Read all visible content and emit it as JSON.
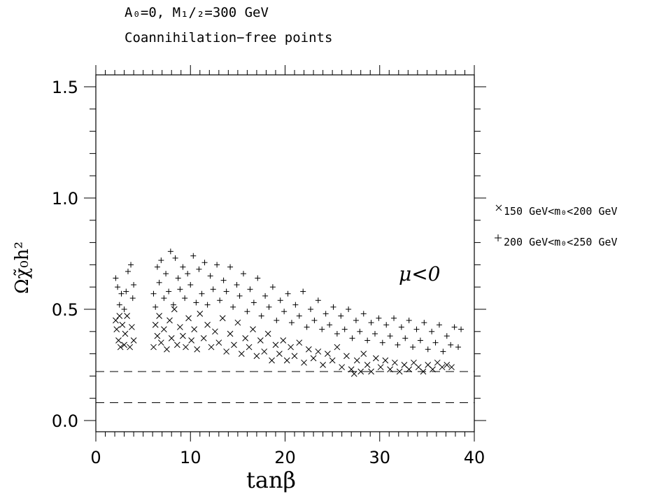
{
  "chart_data": {
    "type": "scatter",
    "title_lines": [
      "A₀=0, M₁/₂=300 GeV",
      "Coannihilation−free points"
    ],
    "xlabel": "tanβ",
    "ylabel": "Ωχ̃₀h²",
    "xlim": [
      0,
      40
    ],
    "ylim": [
      -0.08,
      1.56
    ],
    "xticks": [
      0,
      10,
      20,
      30,
      40
    ],
    "xtick_labels": [
      "0",
      "10",
      "20",
      "30",
      "40"
    ],
    "yticks": [
      0.0,
      0.5,
      1.0,
      1.5
    ],
    "ytick_labels": [
      "0.0",
      "0.5",
      "1.0",
      "1.5"
    ],
    "annotation": "μ<0",
    "reference_lines": [
      0.08,
      0.22
    ],
    "legend_placement": "right",
    "series": [
      {
        "name": "150 GeV<m₀<200 GeV",
        "marker": "x",
        "points": [
          [
            2.1,
            0.45
          ],
          [
            2.2,
            0.41
          ],
          [
            2.4,
            0.36
          ],
          [
            2.5,
            0.47
          ],
          [
            2.6,
            0.33
          ],
          [
            2.8,
            0.43
          ],
          [
            3.0,
            0.34
          ],
          [
            3.1,
            0.39
          ],
          [
            3.3,
            0.47
          ],
          [
            3.6,
            0.33
          ],
          [
            3.8,
            0.42
          ],
          [
            4.0,
            0.36
          ],
          [
            6.1,
            0.33
          ],
          [
            6.3,
            0.43
          ],
          [
            6.5,
            0.38
          ],
          [
            6.7,
            0.47
          ],
          [
            6.9,
            0.35
          ],
          [
            7.2,
            0.41
          ],
          [
            7.5,
            0.32
          ],
          [
            7.8,
            0.45
          ],
          [
            8.0,
            0.37
          ],
          [
            8.3,
            0.5
          ],
          [
            8.6,
            0.34
          ],
          [
            8.9,
            0.42
          ],
          [
            9.2,
            0.38
          ],
          [
            9.5,
            0.33
          ],
          [
            9.8,
            0.46
          ],
          [
            10.1,
            0.36
          ],
          [
            10.4,
            0.41
          ],
          [
            10.7,
            0.32
          ],
          [
            11.0,
            0.48
          ],
          [
            11.4,
            0.37
          ],
          [
            11.8,
            0.43
          ],
          [
            12.2,
            0.33
          ],
          [
            12.6,
            0.4
          ],
          [
            13.0,
            0.35
          ],
          [
            13.4,
            0.46
          ],
          [
            13.8,
            0.31
          ],
          [
            14.2,
            0.39
          ],
          [
            14.6,
            0.34
          ],
          [
            15.0,
            0.44
          ],
          [
            15.4,
            0.3
          ],
          [
            15.8,
            0.37
          ],
          [
            16.2,
            0.33
          ],
          [
            16.6,
            0.41
          ],
          [
            17.0,
            0.29
          ],
          [
            17.4,
            0.36
          ],
          [
            17.8,
            0.31
          ],
          [
            18.2,
            0.39
          ],
          [
            18.6,
            0.27
          ],
          [
            19.0,
            0.34
          ],
          [
            19.4,
            0.3
          ],
          [
            19.8,
            0.36
          ],
          [
            20.2,
            0.27
          ],
          [
            20.6,
            0.33
          ],
          [
            21.0,
            0.29
          ],
          [
            21.5,
            0.35
          ],
          [
            22.0,
            0.26
          ],
          [
            22.5,
            0.32
          ],
          [
            23.0,
            0.28
          ],
          [
            23.5,
            0.31
          ],
          [
            24.0,
            0.25
          ],
          [
            24.5,
            0.3
          ],
          [
            25.0,
            0.27
          ],
          [
            25.5,
            0.33
          ],
          [
            26.0,
            0.24
          ],
          [
            26.5,
            0.29
          ],
          [
            27.0,
            0.23
          ],
          [
            27.3,
            0.21
          ],
          [
            27.6,
            0.27
          ],
          [
            28.0,
            0.22
          ],
          [
            28.3,
            0.3
          ],
          [
            28.7,
            0.25
          ],
          [
            29.1,
            0.22
          ],
          [
            29.6,
            0.28
          ],
          [
            30.1,
            0.24
          ],
          [
            30.6,
            0.27
          ],
          [
            31.1,
            0.23
          ],
          [
            31.6,
            0.26
          ],
          [
            32.1,
            0.22
          ],
          [
            32.6,
            0.25
          ],
          [
            33.1,
            0.23
          ],
          [
            33.6,
            0.26
          ],
          [
            34.1,
            0.24
          ],
          [
            34.6,
            0.22
          ],
          [
            35.1,
            0.25
          ],
          [
            35.6,
            0.23
          ],
          [
            36.1,
            0.26
          ],
          [
            36.6,
            0.24
          ],
          [
            37.1,
            0.25
          ],
          [
            37.6,
            0.24
          ]
        ]
      },
      {
        "name": "200 GeV<m₀<250 GeV",
        "marker": "+",
        "points": [
          [
            2.1,
            0.64
          ],
          [
            2.3,
            0.6
          ],
          [
            2.5,
            0.52
          ],
          [
            2.7,
            0.57
          ],
          [
            3.0,
            0.5
          ],
          [
            3.2,
            0.58
          ],
          [
            3.4,
            0.67
          ],
          [
            3.7,
            0.7
          ],
          [
            3.9,
            0.55
          ],
          [
            4.0,
            0.61
          ],
          [
            6.1,
            0.57
          ],
          [
            6.3,
            0.51
          ],
          [
            6.5,
            0.69
          ],
          [
            6.7,
            0.62
          ],
          [
            6.9,
            0.72
          ],
          [
            7.2,
            0.55
          ],
          [
            7.4,
            0.66
          ],
          [
            7.7,
            0.58
          ],
          [
            7.9,
            0.76
          ],
          [
            8.2,
            0.52
          ],
          [
            8.4,
            0.73
          ],
          [
            8.7,
            0.64
          ],
          [
            8.9,
            0.59
          ],
          [
            9.2,
            0.69
          ],
          [
            9.4,
            0.55
          ],
          [
            9.7,
            0.66
          ],
          [
            10.0,
            0.61
          ],
          [
            10.3,
            0.74
          ],
          [
            10.6,
            0.53
          ],
          [
            10.9,
            0.68
          ],
          [
            11.2,
            0.57
          ],
          [
            11.5,
            0.71
          ],
          [
            11.8,
            0.52
          ],
          [
            12.1,
            0.65
          ],
          [
            12.4,
            0.59
          ],
          [
            12.8,
            0.7
          ],
          [
            13.1,
            0.54
          ],
          [
            13.5,
            0.63
          ],
          [
            13.8,
            0.58
          ],
          [
            14.2,
            0.69
          ],
          [
            14.5,
            0.51
          ],
          [
            14.9,
            0.61
          ],
          [
            15.2,
            0.56
          ],
          [
            15.6,
            0.66
          ],
          [
            16.0,
            0.49
          ],
          [
            16.3,
            0.59
          ],
          [
            16.7,
            0.53
          ],
          [
            17.1,
            0.64
          ],
          [
            17.5,
            0.47
          ],
          [
            17.9,
            0.56
          ],
          [
            18.3,
            0.51
          ],
          [
            18.7,
            0.6
          ],
          [
            19.1,
            0.45
          ],
          [
            19.5,
            0.54
          ],
          [
            19.9,
            0.49
          ],
          [
            20.3,
            0.57
          ],
          [
            20.7,
            0.44
          ],
          [
            21.1,
            0.52
          ],
          [
            21.5,
            0.47
          ],
          [
            21.9,
            0.58
          ],
          [
            22.3,
            0.42
          ],
          [
            22.7,
            0.5
          ],
          [
            23.1,
            0.45
          ],
          [
            23.5,
            0.54
          ],
          [
            23.9,
            0.41
          ],
          [
            24.3,
            0.48
          ],
          [
            24.7,
            0.43
          ],
          [
            25.1,
            0.51
          ],
          [
            25.5,
            0.39
          ],
          [
            25.9,
            0.47
          ],
          [
            26.3,
            0.41
          ],
          [
            26.7,
            0.5
          ],
          [
            27.1,
            0.37
          ],
          [
            27.5,
            0.45
          ],
          [
            27.9,
            0.4
          ],
          [
            28.3,
            0.48
          ],
          [
            28.7,
            0.36
          ],
          [
            29.1,
            0.44
          ],
          [
            29.5,
            0.39
          ],
          [
            29.9,
            0.46
          ],
          [
            30.3,
            0.35
          ],
          [
            30.7,
            0.43
          ],
          [
            31.1,
            0.38
          ],
          [
            31.5,
            0.46
          ],
          [
            31.9,
            0.34
          ],
          [
            32.3,
            0.42
          ],
          [
            32.7,
            0.37
          ],
          [
            33.1,
            0.45
          ],
          [
            33.5,
            0.33
          ],
          [
            33.9,
            0.41
          ],
          [
            34.3,
            0.36
          ],
          [
            34.7,
            0.44
          ],
          [
            35.1,
            0.32
          ],
          [
            35.5,
            0.4
          ],
          [
            35.9,
            0.35
          ],
          [
            36.3,
            0.43
          ],
          [
            36.7,
            0.31
          ],
          [
            37.1,
            0.38
          ],
          [
            37.5,
            0.34
          ],
          [
            37.9,
            0.42
          ],
          [
            38.3,
            0.33
          ],
          [
            38.6,
            0.41
          ]
        ]
      }
    ]
  }
}
